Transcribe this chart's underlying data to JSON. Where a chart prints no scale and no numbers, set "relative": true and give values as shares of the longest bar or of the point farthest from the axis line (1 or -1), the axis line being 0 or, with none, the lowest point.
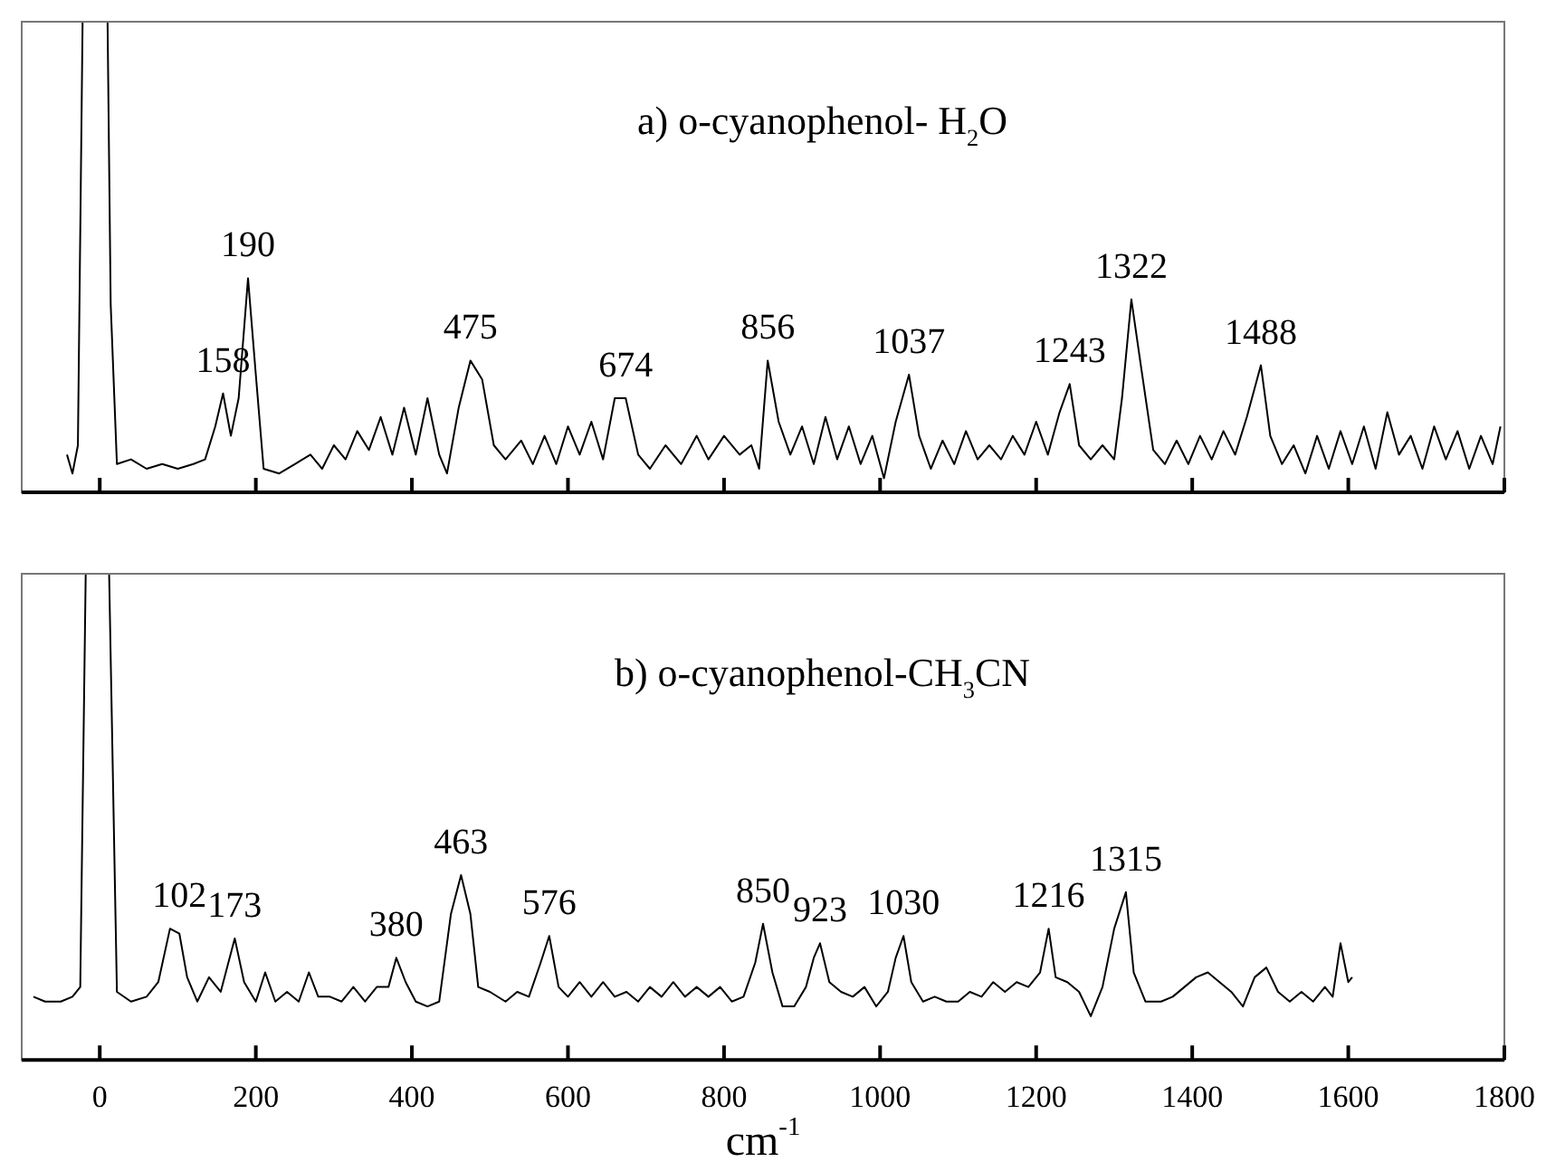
{
  "chart_data": [
    {
      "type": "line",
      "title": "a) o-cyanophenol- H$_{2}$O",
      "relative": true,
      "xlim": [
        -100,
        1800
      ],
      "xticks": [
        0,
        200,
        400,
        600,
        800,
        1000,
        1200,
        1400,
        1600,
        1800
      ],
      "tick_labels": false,
      "series": [
        {
          "color": "#000000",
          "x": [
            -42,
            -35,
            -28,
            -22,
            10,
            14,
            22,
            40,
            60,
            80,
            100,
            120,
            135,
            148,
            158,
            168,
            178,
            190,
            200,
            210,
            230,
            250,
            270,
            285,
            300,
            315,
            330,
            345,
            360,
            375,
            390,
            405,
            420,
            435,
            445,
            460,
            475,
            490,
            505,
            520,
            540,
            555,
            570,
            585,
            600,
            615,
            630,
            645,
            660,
            674,
            690,
            705,
            725,
            745,
            765,
            780,
            800,
            820,
            835,
            845,
            856,
            870,
            885,
            900,
            915,
            930,
            945,
            960,
            975,
            990,
            1005,
            1020,
            1037,
            1050,
            1065,
            1080,
            1095,
            1110,
            1125,
            1140,
            1155,
            1170,
            1185,
            1200,
            1215,
            1230,
            1243,
            1255,
            1270,
            1285,
            1300,
            1310,
            1322,
            1335,
            1350,
            1365,
            1380,
            1395,
            1410,
            1425,
            1440,
            1455,
            1470,
            1488,
            1500,
            1515,
            1530,
            1545,
            1560,
            1575,
            1590,
            1605,
            1620,
            1635,
            1650,
            1665,
            1680,
            1695,
            1710,
            1725,
            1740,
            1755,
            1770,
            1785,
            1795
          ],
          "values": [
            0.08,
            0.04,
            0.1,
            1,
            1,
            0.4,
            0.06,
            0.07,
            0.05,
            0.06,
            0.05,
            0.06,
            0.07,
            0.14,
            0.21,
            0.12,
            0.2,
            0.455,
            0.25,
            0.05,
            0.04,
            0.06,
            0.08,
            0.05,
            0.1,
            0.07,
            0.13,
            0.09,
            0.16,
            0.08,
            0.18,
            0.08,
            0.2,
            0.08,
            0.04,
            0.18,
            0.28,
            0.24,
            0.1,
            0.07,
            0.11,
            0.06,
            0.12,
            0.06,
            0.14,
            0.08,
            0.15,
            0.07,
            0.2,
            0.2,
            0.08,
            0.05,
            0.1,
            0.06,
            0.12,
            0.07,
            0.12,
            0.08,
            0.1,
            0.05,
            0.28,
            0.15,
            0.08,
            0.14,
            0.06,
            0.16,
            0.07,
            0.14,
            0.06,
            0.12,
            0.03,
            0.15,
            0.25,
            0.12,
            0.05,
            0.11,
            0.06,
            0.13,
            0.07,
            0.1,
            0.07,
            0.12,
            0.08,
            0.15,
            0.08,
            0.17,
            0.23,
            0.1,
            0.07,
            0.1,
            0.07,
            0.2,
            0.41,
            0.26,
            0.09,
            0.06,
            0.11,
            0.06,
            0.12,
            0.07,
            0.13,
            0.08,
            0.16,
            0.27,
            0.12,
            0.06,
            0.1,
            0.04,
            0.12,
            0.05,
            0.13,
            0.06,
            0.14,
            0.05,
            0.17,
            0.08,
            0.12,
            0.05,
            0.14,
            0.07,
            0.13,
            0.05,
            0.12,
            0.06,
            0.14
          ]
        }
      ],
      "annotations": [
        {
          "text": "158",
          "x": 158,
          "y": 0.21
        },
        {
          "text": "190",
          "x": 190,
          "y": 0.455
        },
        {
          "text": "475",
          "x": 475,
          "y": 0.28
        },
        {
          "text": "674",
          "x": 674,
          "y": 0.2
        },
        {
          "text": "856",
          "x": 856,
          "y": 0.28
        },
        {
          "text": "1037",
          "x": 1037,
          "y": 0.25
        },
        {
          "text": "1243",
          "x": 1243,
          "y": 0.23
        },
        {
          "text": "1322",
          "x": 1322,
          "y": 0.41
        },
        {
          "text": "1488",
          "x": 1488,
          "y": 0.27
        }
      ]
    },
    {
      "type": "line",
      "title": "b) o-cyanophenol-CH$_{3}$CN",
      "xlabel": "cm$^{-1}$",
      "relative": true,
      "xlim": [
        -100,
        1800
      ],
      "xticks": [
        0,
        200,
        400,
        600,
        800,
        1000,
        1200,
        1400,
        1600,
        1800
      ],
      "series": [
        {
          "color": "#000000",
          "x": [
            -85,
            -70,
            -50,
            -35,
            -25,
            -18,
            12,
            22,
            40,
            60,
            75,
            90,
            102,
            112,
            125,
            140,
            155,
            173,
            185,
            200,
            212,
            225,
            240,
            255,
            268,
            280,
            295,
            310,
            325,
            340,
            355,
            370,
            380,
            392,
            405,
            420,
            435,
            450,
            463,
            475,
            485,
            500,
            520,
            535,
            550,
            565,
            576,
            588,
            600,
            615,
            630,
            645,
            660,
            675,
            690,
            705,
            720,
            735,
            750,
            765,
            780,
            795,
            810,
            825,
            840,
            850,
            862,
            875,
            890,
            905,
            915,
            923,
            935,
            950,
            965,
            980,
            995,
            1010,
            1020,
            1030,
            1040,
            1055,
            1070,
            1085,
            1100,
            1115,
            1130,
            1145,
            1160,
            1175,
            1190,
            1205,
            1216,
            1225,
            1240,
            1255,
            1270,
            1285,
            1300,
            1315,
            1325,
            1340,
            1360,
            1375,
            1390,
            1405,
            1420,
            1435,
            1450,
            1465,
            1480,
            1495,
            1510,
            1525,
            1540,
            1555,
            1570,
            1580,
            1590,
            1600,
            1605
          ],
          "values": [
            0.13,
            0.12,
            0.12,
            0.13,
            0.15,
            1,
            1,
            0.14,
            0.12,
            0.13,
            0.16,
            0.27,
            0.26,
            0.17,
            0.12,
            0.17,
            0.14,
            0.25,
            0.16,
            0.12,
            0.18,
            0.12,
            0.14,
            0.12,
            0.18,
            0.13,
            0.13,
            0.12,
            0.15,
            0.12,
            0.15,
            0.15,
            0.21,
            0.16,
            0.12,
            0.11,
            0.12,
            0.3,
            0.38,
            0.3,
            0.15,
            0.14,
            0.12,
            0.14,
            0.13,
            0.2,
            0.255,
            0.15,
            0.13,
            0.16,
            0.13,
            0.16,
            0.13,
            0.14,
            0.12,
            0.15,
            0.13,
            0.16,
            0.13,
            0.15,
            0.13,
            0.15,
            0.12,
            0.13,
            0.2,
            0.28,
            0.18,
            0.11,
            0.11,
            0.15,
            0.21,
            0.24,
            0.16,
            0.14,
            0.13,
            0.15,
            0.11,
            0.14,
            0.21,
            0.255,
            0.16,
            0.12,
            0.13,
            0.12,
            0.12,
            0.14,
            0.13,
            0.16,
            0.14,
            0.16,
            0.15,
            0.18,
            0.27,
            0.17,
            0.16,
            0.14,
            0.09,
            0.15,
            0.27,
            0.345,
            0.18,
            0.12,
            0.12,
            0.13,
            0.15,
            0.17,
            0.18,
            0.16,
            0.14,
            0.11,
            0.17,
            0.19,
            0.14,
            0.12,
            0.14,
            0.12,
            0.15,
            0.13,
            0.24,
            0.16,
            0.17
          ]
        }
      ],
      "annotations": [
        {
          "text": "102",
          "x": 102,
          "y": 0.27
        },
        {
          "text": "173",
          "x": 173,
          "y": 0.25
        },
        {
          "text": "380",
          "x": 380,
          "y": 0.21
        },
        {
          "text": "463",
          "x": 463,
          "y": 0.38
        },
        {
          "text": "576",
          "x": 576,
          "y": 0.255
        },
        {
          "text": "850",
          "x": 850,
          "y": 0.28
        },
        {
          "text": "923",
          "x": 923,
          "y": 0.24
        },
        {
          "text": "1030",
          "x": 1030,
          "y": 0.255
        },
        {
          "text": "1216",
          "x": 1216,
          "y": 0.27
        },
        {
          "text": "1315",
          "x": 1315,
          "y": 0.345
        }
      ]
    }
  ]
}
